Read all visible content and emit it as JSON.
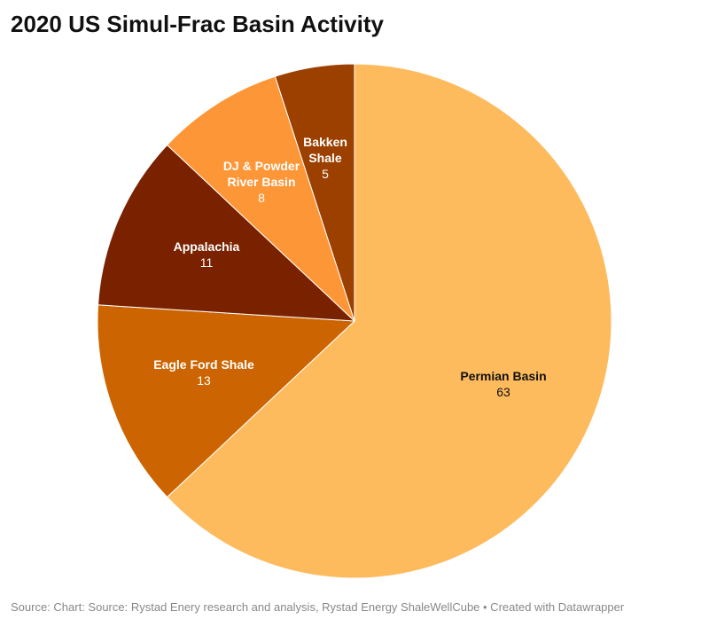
{
  "chart_data": {
    "type": "pie",
    "title": "2020 US Simul-Frac Basin Activity",
    "categories": [
      "Permian Basin",
      "Eagle Ford Shale",
      "Appalachia",
      "DJ & Powder River Basin",
      "Bakken Shale"
    ],
    "values": [
      63,
      13,
      11,
      8,
      5
    ],
    "colors": [
      "#fdbb5e",
      "#cc6501",
      "#7a2200",
      "#fd9637",
      "#9c4000"
    ],
    "source": "Source: Chart: Source: Rystad Enery research and analysis, Rystad Energy ShaleWellCube • Created with Datawrapper"
  }
}
